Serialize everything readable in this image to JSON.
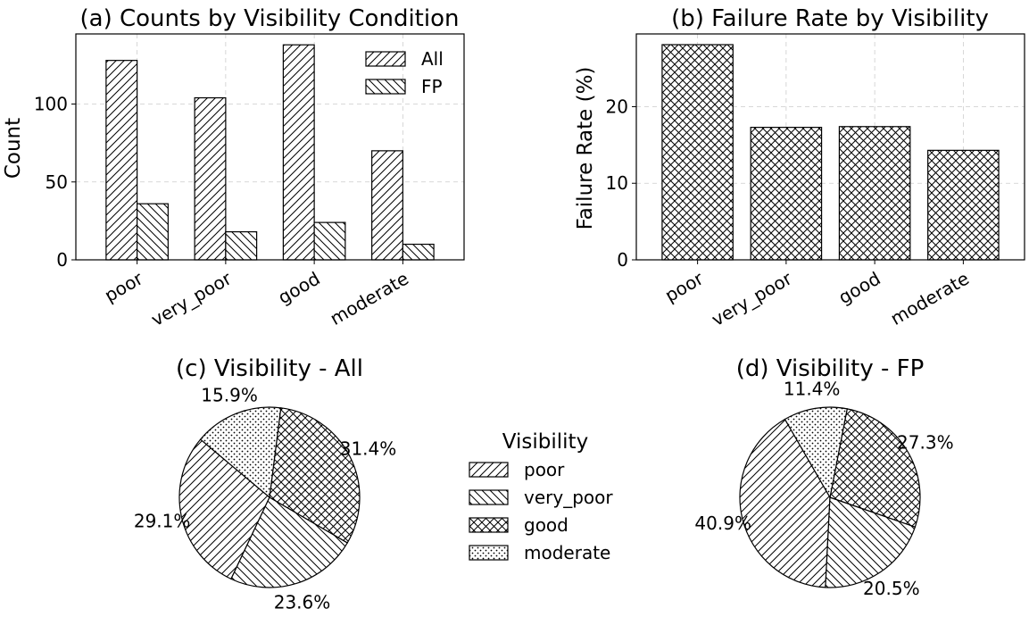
{
  "chart_data": [
    {
      "id": "a",
      "type": "bar",
      "title": "(a) Counts by Visibility Condition",
      "xlabel": "",
      "ylabel": "Count",
      "categories": [
        "poor",
        "very_poor",
        "good",
        "moderate"
      ],
      "series": [
        {
          "name": "All",
          "values": [
            128,
            104,
            138,
            70
          ],
          "hatch": "diag-right"
        },
        {
          "name": "FP",
          "values": [
            36,
            18,
            24,
            10
          ],
          "hatch": "diag-left"
        }
      ],
      "ylim": [
        0,
        145
      ],
      "yticks": [
        0,
        50,
        100
      ],
      "grid": true,
      "legend": "top-right"
    },
    {
      "id": "b",
      "type": "bar",
      "title": "(b) Failure Rate by Visibility",
      "xlabel": "",
      "ylabel": "Failure Rate (%)",
      "categories": [
        "poor",
        "very_poor",
        "good",
        "moderate"
      ],
      "values": [
        28.1,
        17.3,
        17.4,
        14.3
      ],
      "hatch": "cross",
      "ylim": [
        0,
        29.5
      ],
      "yticks": [
        0,
        10,
        20
      ],
      "grid": true
    },
    {
      "id": "c",
      "type": "pie",
      "title": "(c) Visibility - All",
      "labels": [
        "poor",
        "very_poor",
        "good",
        "moderate"
      ],
      "values": [
        29.1,
        23.6,
        31.4,
        15.9
      ],
      "pct_labels": [
        "29.1%",
        "23.6%",
        "31.4%",
        "15.9%"
      ],
      "hatches": [
        "diag-right",
        "diag-left",
        "cross",
        "dots"
      ]
    },
    {
      "id": "d",
      "type": "pie",
      "title": "(d) Visibility - FP",
      "labels": [
        "poor",
        "very_poor",
        "good",
        "moderate"
      ],
      "values": [
        40.9,
        20.5,
        27.3,
        11.4
      ],
      "pct_labels": [
        "40.9%",
        "20.5%",
        "27.3%",
        "11.4%"
      ],
      "hatches": [
        "diag-right",
        "diag-left",
        "cross",
        "dots"
      ]
    }
  ],
  "shared_legend": {
    "title": "Visibility",
    "items": [
      {
        "label": "poor",
        "hatch": "diag-right"
      },
      {
        "label": "very_poor",
        "hatch": "diag-left"
      },
      {
        "label": "good",
        "hatch": "cross"
      },
      {
        "label": "moderate",
        "hatch": "dots"
      }
    ]
  }
}
